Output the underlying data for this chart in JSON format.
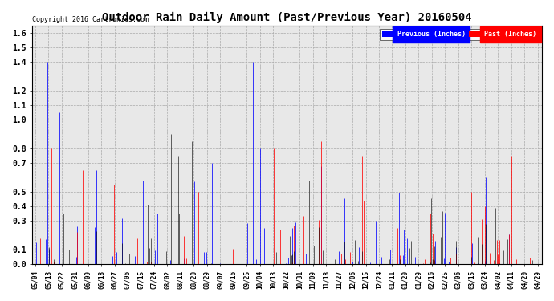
{
  "title": "Outdoor Rain Daily Amount (Past/Previous Year) 20160504",
  "copyright": "Copyright 2016 Cartronics.com",
  "legend_prev_label": "Previous (Inches)",
  "legend_past_label": "Past (Inches)",
  "legend_prev_bg": "#0000FF",
  "legend_past_bg": "#FF0000",
  "yticks": [
    0.0,
    0.1,
    0.3,
    0.4,
    0.5,
    0.7,
    0.8,
    1.0,
    1.1,
    1.2,
    1.4,
    1.5,
    1.6
  ],
  "ylim": [
    0.0,
    1.65
  ],
  "bg_color": "#FFFFFF",
  "plot_bg": "#E8E8E8",
  "grid_color": "#AAAAAA",
  "blue_color": "#0000FF",
  "red_color": "#FF0000",
  "black_color": "#000000",
  "xtick_labels": [
    "05/04",
    "05/13",
    "05/22",
    "05/31",
    "06/09",
    "06/18",
    "06/27",
    "07/06",
    "07/15",
    "07/24",
    "08/02",
    "08/11",
    "08/20",
    "08/29",
    "09/07",
    "09/16",
    "09/25",
    "10/04",
    "10/13",
    "10/22",
    "10/31",
    "11/09",
    "11/18",
    "11/27",
    "12/06",
    "12/15",
    "12/24",
    "01/11",
    "01/20",
    "01/29",
    "02/16",
    "02/25",
    "03/06",
    "03/15",
    "03/24",
    "04/02",
    "04/11",
    "04/20",
    "04/29"
  ],
  "n_points": 370
}
